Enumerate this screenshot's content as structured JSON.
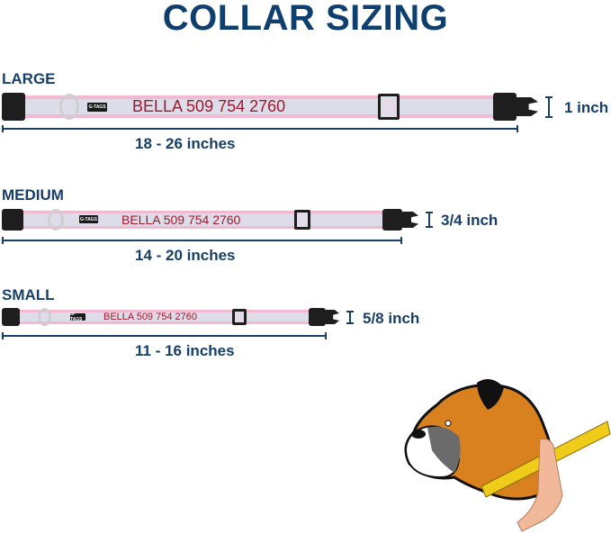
{
  "title": "COLLAR SIZING",
  "sizes": [
    {
      "label": "LARGE",
      "name_text": "BELLA 509 754 2760",
      "logo": "G-TAGS",
      "width": "1 inch",
      "length": "18 - 26 inches"
    },
    {
      "label": "MEDIUM",
      "name_text": "BELLA 509 754 2760",
      "logo": "G-TAGS",
      "width": "3/4 inch",
      "length": "14 - 20 inches"
    },
    {
      "label": "SMALL",
      "name_text": "BELLA 509 754 2760",
      "logo": "G-TAGS",
      "width": "5/8 inch",
      "length": "11 - 16 inches"
    }
  ],
  "colors": {
    "heading": "#0f3f6e",
    "text": "#173f68",
    "strap_edge": "#f2b9d3",
    "strap_fill": "#dcdde8",
    "name": "#a3162c"
  }
}
